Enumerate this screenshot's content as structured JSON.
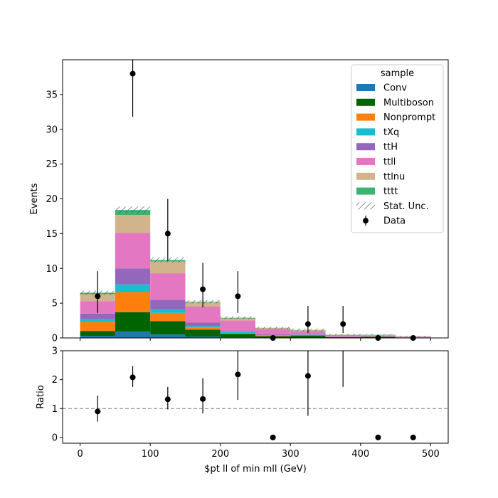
{
  "chart_data": {
    "type": "bar",
    "stacked": true,
    "bin_edges": [
      0,
      50,
      100,
      150,
      200,
      250,
      300,
      350,
      400,
      450,
      500
    ],
    "bin_centers": [
      25,
      75,
      125,
      175,
      225,
      275,
      325,
      375,
      425,
      475
    ],
    "xlabel": "$pt ll of min mll (GeV)",
    "xlim": [
      -25,
      525
    ],
    "x_ticks": [
      "0",
      "100",
      "200",
      "300",
      "400",
      "500"
    ],
    "top_panel": {
      "ylabel": "Events",
      "ylim": [
        0,
        40
      ],
      "y_ticks": [
        "0",
        "5",
        "10",
        "15",
        "20",
        "25",
        "30",
        "35"
      ],
      "legend_title": "sample",
      "legend_position": "top-right",
      "series": [
        {
          "name": "Conv",
          "color": "#1f77b4",
          "values": [
            0.3,
            0.9,
            0.5,
            0.2,
            0.1,
            0.05,
            0.05,
            0.02,
            0.02,
            0.01
          ]
        },
        {
          "name": "Multiboson",
          "color": "#006400",
          "values": [
            0.7,
            2.8,
            1.9,
            1.0,
            0.5,
            0.2,
            0.3,
            0.1,
            0.15,
            0.05
          ]
        },
        {
          "name": "Nonprompt",
          "color": "#ff7f0e",
          "values": [
            1.3,
            2.9,
            1.2,
            0.3,
            0.1,
            0.1,
            0.05,
            0.02,
            0.02,
            0.01
          ]
        },
        {
          "name": "tXq",
          "color": "#17becf",
          "values": [
            0.4,
            1.1,
            0.5,
            0.2,
            0.2,
            0.05,
            0.05,
            0.02,
            0.02,
            0.01
          ]
        },
        {
          "name": "ttH",
          "color": "#9467bd",
          "values": [
            0.8,
            2.3,
            1.4,
            0.5,
            0.1,
            0.1,
            0.05,
            0.02,
            0.03,
            0.02
          ]
        },
        {
          "name": "ttll",
          "color": "#e377c2",
          "values": [
            1.8,
            5.1,
            3.8,
            2.3,
            1.5,
            0.8,
            0.5,
            0.25,
            0.15,
            0.08
          ]
        },
        {
          "name": "ttlnu",
          "color": "#d2b48c",
          "values": [
            1.0,
            2.6,
            1.7,
            0.6,
            0.3,
            0.1,
            0.1,
            0.03,
            0.05,
            0.05
          ]
        },
        {
          "name": "tttt",
          "color": "#3cb371",
          "values": [
            0.2,
            0.7,
            0.2,
            0.1,
            0.1,
            0.05,
            0.05,
            0.02,
            0.03,
            0.02
          ]
        }
      ],
      "stat_unc_label": "Stat. Unc.",
      "stat_unc_values": [
        0.3,
        0.5,
        0.4,
        0.25,
        0.2,
        0.15,
        0.2,
        0.1,
        0.08,
        0.06
      ],
      "data": {
        "name": "Data",
        "values": [
          6,
          38,
          15,
          7,
          6,
          0,
          2,
          2,
          0,
          0
        ],
        "err_low": [
          2.4,
          6.2,
          3.9,
          2.6,
          2.4,
          0,
          1.3,
          1.3,
          0,
          0
        ],
        "err_high": [
          3.6,
          7.3,
          5.0,
          3.8,
          3.6,
          0,
          2.6,
          2.6,
          0,
          0
        ]
      }
    },
    "ratio_panel": {
      "ylabel": "Ratio",
      "ylim": [
        -0.2,
        3.0
      ],
      "y_ticks": [
        "0",
        "1",
        "2",
        "3"
      ],
      "reference_line": 1,
      "points": [
        {
          "x": 25,
          "y": 0.9,
          "lo": 0.55,
          "hi": 1.45
        },
        {
          "x": 75,
          "y": 2.08,
          "lo": 1.75,
          "hi": 2.47
        },
        {
          "x": 125,
          "y": 1.32,
          "lo": 0.97,
          "hi": 1.75
        },
        {
          "x": 175,
          "y": 1.33,
          "lo": 0.83,
          "hi": 2.05
        },
        {
          "x": 225,
          "y": 2.18,
          "lo": 1.3,
          "hi": 3.0
        },
        {
          "x": 275,
          "y": 0,
          "lo": 0,
          "hi": 0
        },
        {
          "x": 325,
          "y": 2.13,
          "lo": 0.75,
          "hi": 3.0
        },
        {
          "x": 375,
          "y": null,
          "lo": 1.75,
          "hi": 3.0
        },
        {
          "x": 425,
          "y": 0,
          "lo": 0,
          "hi": 0
        },
        {
          "x": 475,
          "y": 0,
          "lo": 0,
          "hi": 0
        }
      ]
    }
  }
}
